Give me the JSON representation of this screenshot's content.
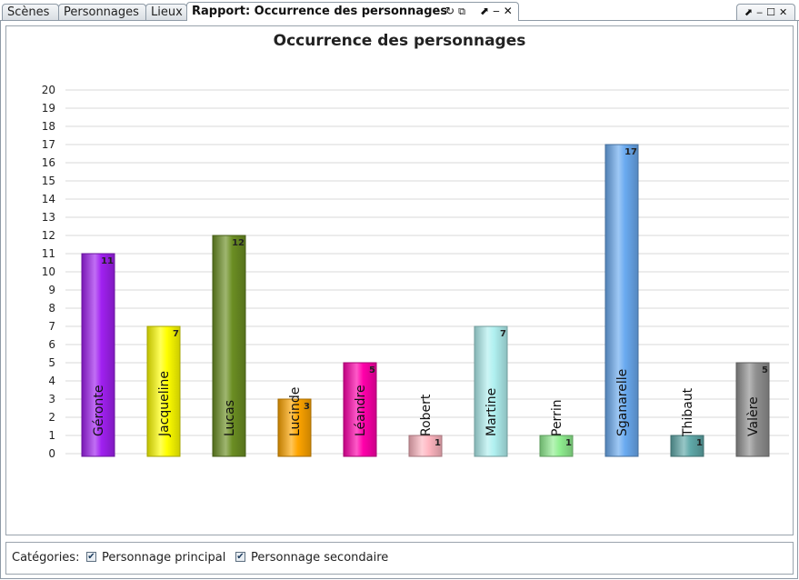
{
  "tabs": [
    {
      "label": "Scènes"
    },
    {
      "label": "Personnages"
    },
    {
      "label": "Lieux"
    },
    {
      "label": "Rapport: Occurrence des personnages"
    }
  ],
  "footer": {
    "categories_label": "Catégories:",
    "options": [
      {
        "label": "Personnage principal",
        "checked": true
      },
      {
        "label": "Personnage secondaire",
        "checked": true
      }
    ]
  },
  "chart_data": {
    "type": "bar",
    "title": "Occurrence des personnages",
    "xlabel": "",
    "ylabel": "",
    "ylim": [
      0,
      20
    ],
    "yticks": [
      "0",
      "1",
      "2",
      "3",
      "4",
      "5",
      "6",
      "7",
      "8",
      "9",
      "10",
      "11",
      "12",
      "13",
      "14",
      "15",
      "16",
      "17",
      "18",
      "19",
      "20"
    ],
    "grid": true,
    "categories": [
      "Géronte",
      "Jacqueline",
      "Lucas",
      "Lucinde",
      "Léandre",
      "Robert",
      "Martine",
      "Perrin",
      "Sganarelle",
      "Thibaut",
      "Valère"
    ],
    "values": [
      11,
      7,
      12,
      3,
      5,
      1,
      7,
      1,
      17,
      1,
      5
    ],
    "colors": [
      "#a020f0",
      "#ffff00",
      "#6b8e23",
      "#ffa500",
      "#ff00aa",
      "#ffb6c1",
      "#b0f0f0",
      "#90ee90",
      "#6aaaf0",
      "#5fa8a8",
      "#909090"
    ]
  }
}
